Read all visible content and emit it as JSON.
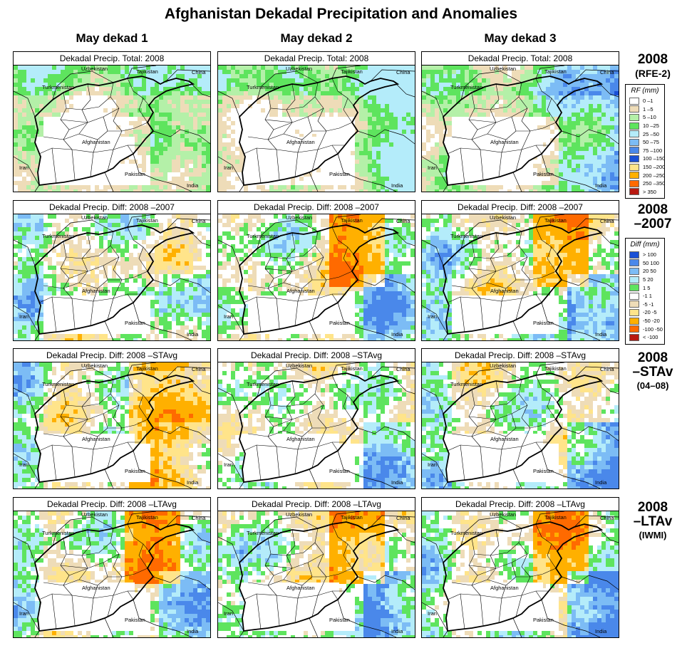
{
  "title": "Afghanistan Dekadal Precipitation and Anomalies",
  "columns": [
    "May dekad 1",
    "May dekad 2",
    "May dekad 3"
  ],
  "rows": [
    {
      "panel_title": "Dekadal Precip. Total: 2008",
      "label": "2008",
      "sublabel": "(RFE-2)"
    },
    {
      "panel_title": "Dekadal Precip. Diff:  2008 –2007",
      "label": "2008",
      "label2": "–2007"
    },
    {
      "panel_title": "Dekadal Precip. Diff:  2008 –STAvg",
      "label": "2008",
      "label2": "–STAv",
      "sublabel": "(04–08)"
    },
    {
      "panel_title": "Dekadal Precip. Diff:  2008 –LTAvg",
      "label": "2008",
      "label2": "–LTAv",
      "sublabel": "(IWMI)"
    }
  ],
  "map_labels": {
    "uzbekistan": "Uzbekistan",
    "tajikistan": "Tajikistan",
    "china": "China",
    "turkmenistan": "Turkmenistan",
    "afghanistan": "Afghanistan",
    "iran": "Iran",
    "pakistan": "Pakistan",
    "india": "India"
  },
  "legend_rf": {
    "title": "RF (mm)",
    "items": [
      {
        "label": "0 –1",
        "color": "#ffffff"
      },
      {
        "label": "1 –5",
        "color": "#eedcb8"
      },
      {
        "label": "5 –10",
        "color": "#b4f0a8"
      },
      {
        "label": "10 –25",
        "color": "#5ee45e"
      },
      {
        "label": "25 –50",
        "color": "#b4ecfa"
      },
      {
        "label": "50 –75",
        "color": "#7cbcf5"
      },
      {
        "label": "75 –100",
        "color": "#4a88ea"
      },
      {
        "label": "100 –150",
        "color": "#1a50d6"
      },
      {
        "label": "150 –200",
        "color": "#ffe48a"
      },
      {
        "label": "200 –250",
        "color": "#ffb000"
      },
      {
        "label": "250 –350",
        "color": "#ff6a00"
      },
      {
        "label": "> 350",
        "color": "#b81810"
      }
    ]
  },
  "legend_diff": {
    "title": "Diff (mm)",
    "items": [
      {
        "label": "> 100",
        "color": "#1a50d6"
      },
      {
        "label": "50  100",
        "color": "#4a88ea"
      },
      {
        "label": "20  50",
        "color": "#7cbcf5"
      },
      {
        "label": "5  20",
        "color": "#b4ecfa"
      },
      {
        "label": "1   5",
        "color": "#5ee45e"
      },
      {
        "label": "-1   1",
        "color": "#ffffff"
      },
      {
        "label": "-5  -1",
        "color": "#eedcb8"
      },
      {
        "label": "-20  -5",
        "color": "#ffe48a"
      },
      {
        "label": "-50  -20",
        "color": "#ffb000"
      },
      {
        "label": "-100  -50",
        "color": "#ff6a00"
      },
      {
        "label": "< -100",
        "color": "#b81810"
      }
    ]
  }
}
